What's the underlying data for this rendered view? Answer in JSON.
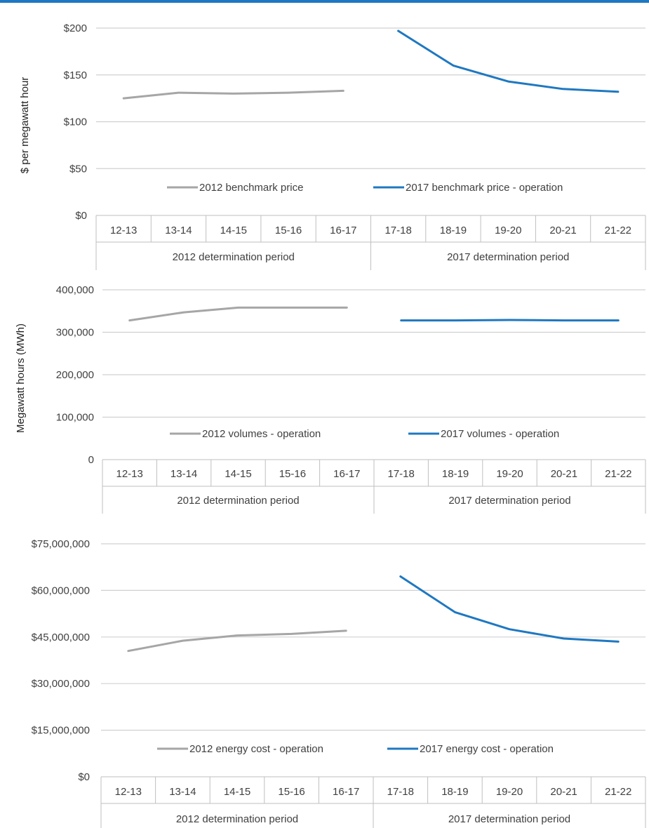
{
  "chart_data": [
    {
      "type": "line",
      "ylabel": "$ per megawatt hour",
      "ylim": [
        0,
        200
      ],
      "yticks": [
        "$0",
        "$50",
        "$100",
        "$150",
        "$200"
      ],
      "categories": [
        "12-13",
        "13-14",
        "14-15",
        "15-16",
        "16-17",
        "17-18",
        "18-19",
        "19-20",
        "20-21",
        "21-22"
      ],
      "groups": [
        {
          "label": "2012 determination period",
          "span": 5
        },
        {
          "label": "2017 determination period",
          "span": 5
        }
      ],
      "series": [
        {
          "name": "2012 benchmark price",
          "color": "#a6a6a6",
          "values": [
            125,
            131,
            130,
            131,
            133,
            null,
            null,
            null,
            null,
            null
          ]
        },
        {
          "name": "2017 benchmark price - operation",
          "color": "#1f78c1",
          "values": [
            null,
            null,
            null,
            null,
            null,
            197,
            160,
            143,
            135,
            132
          ]
        }
      ],
      "grid": true,
      "legend": "bottom-inside"
    },
    {
      "type": "line",
      "ylabel": "Megawatt hours (MWh)",
      "ylim": [
        0,
        400000
      ],
      "yticks": [
        "0",
        "100,000",
        "200,000",
        "300,000",
        "400,000"
      ],
      "categories": [
        "12-13",
        "13-14",
        "14-15",
        "15-16",
        "16-17",
        "17-18",
        "18-19",
        "19-20",
        "20-21",
        "21-22"
      ],
      "groups": [
        {
          "label": "2012 determination period",
          "span": 5
        },
        {
          "label": "2017 determination period",
          "span": 5
        }
      ],
      "series": [
        {
          "name": "2012 volumes - operation",
          "color": "#a6a6a6",
          "values": [
            328000,
            347000,
            358000,
            358000,
            358000,
            null,
            null,
            null,
            null,
            null
          ]
        },
        {
          "name": "2017 volumes - operation",
          "color": "#1f78c1",
          "values": [
            null,
            null,
            null,
            null,
            null,
            328000,
            328000,
            329000,
            328000,
            328000
          ]
        }
      ],
      "grid": true,
      "legend": "bottom-inside"
    },
    {
      "type": "line",
      "ylabel": "",
      "ylim": [
        0,
        75000000
      ],
      "yticks": [
        "$0",
        "$15,000,000",
        "$30,000,000",
        "$45,000,000",
        "$60,000,000",
        "$75,000,000"
      ],
      "categories": [
        "12-13",
        "13-14",
        "14-15",
        "15-16",
        "16-17",
        "17-18",
        "18-19",
        "19-20",
        "20-21",
        "21-22"
      ],
      "groups": [
        {
          "label": "2012 determination period",
          "span": 5
        },
        {
          "label": "2017 determination period",
          "span": 5
        }
      ],
      "series": [
        {
          "name": "2012 energy cost - operation",
          "color": "#a6a6a6",
          "values": [
            40500000,
            43800000,
            45500000,
            46000000,
            47000000,
            null,
            null,
            null,
            null,
            null
          ]
        },
        {
          "name": "2017 energy cost - operation",
          "color": "#1f78c1",
          "values": [
            null,
            null,
            null,
            null,
            null,
            64500000,
            53000000,
            47500000,
            44500000,
            43500000
          ]
        }
      ],
      "grid": true,
      "legend": "bottom-inside"
    }
  ]
}
